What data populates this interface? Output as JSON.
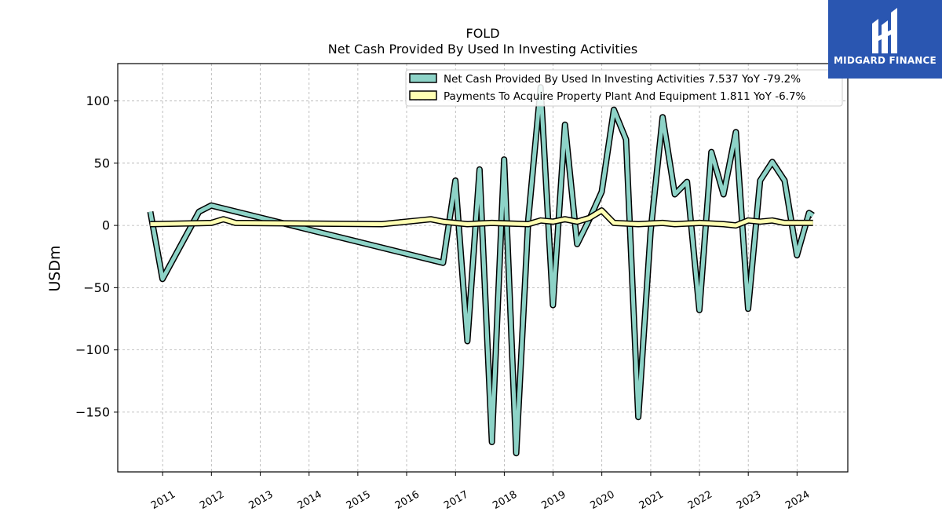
{
  "logo": {
    "text": "MIDGARD FINANCE",
    "icon": "midgard-logo-icon",
    "bg_color": "#2a56b1"
  },
  "chart_data": {
    "type": "line",
    "title": "FOLD",
    "subtitle": "Net Cash Provided By Used In Investing Activities",
    "xlabel": "",
    "ylabel": "USDm",
    "xlim": [
      "2010-01-30",
      "2025-01-15"
    ],
    "ylim": [
      -198,
      130
    ],
    "yticks": [
      100,
      50,
      0,
      -50,
      -100,
      -150
    ],
    "ytick_labels": [
      "100",
      "50",
      "0",
      "−50",
      "−100",
      "−150"
    ],
    "xticks": [
      "2011",
      "2012",
      "2013",
      "2014",
      "2015",
      "2016",
      "2017",
      "2018",
      "2019",
      "2020",
      "2021",
      "2022",
      "2023",
      "2024"
    ],
    "grid": true,
    "legend_position": "top-right",
    "series": [
      {
        "name": "Net Cash Provided By Used In Investing Activities  7.537 YoY -79.2%",
        "color": "#8dd3c7",
        "points": [
          [
            "2010-10-01",
            11
          ],
          [
            "2010-12-31",
            -43
          ],
          [
            "2011-09-30",
            11
          ],
          [
            "2011-12-31",
            16
          ],
          [
            "2016-09-30",
            -30
          ],
          [
            "2016-12-31",
            36
          ],
          [
            "2017-03-31",
            -93
          ],
          [
            "2017-06-30",
            45
          ],
          [
            "2017-09-30",
            -174
          ],
          [
            "2017-12-31",
            53
          ],
          [
            "2018-03-31",
            -183
          ],
          [
            "2018-06-30",
            5
          ],
          [
            "2018-09-30",
            111
          ],
          [
            "2018-12-31",
            -64
          ],
          [
            "2019-03-31",
            81
          ],
          [
            "2019-06-30",
            -15
          ],
          [
            "2019-09-30",
            5
          ],
          [
            "2019-12-31",
            27
          ],
          [
            "2020-03-31",
            93
          ],
          [
            "2020-06-30",
            69
          ],
          [
            "2020-09-30",
            -154
          ],
          [
            "2020-12-31",
            -5
          ],
          [
            "2021-03-31",
            87
          ],
          [
            "2021-06-30",
            25
          ],
          [
            "2021-09-30",
            35
          ],
          [
            "2021-12-31",
            -68
          ],
          [
            "2022-03-31",
            59
          ],
          [
            "2022-06-30",
            25
          ],
          [
            "2022-09-30",
            75
          ],
          [
            "2022-12-31",
            -67
          ],
          [
            "2023-03-31",
            36
          ],
          [
            "2023-06-30",
            51
          ],
          [
            "2023-09-30",
            36
          ],
          [
            "2023-12-31",
            -24
          ],
          [
            "2024-03-31",
            10
          ],
          [
            "2024-04-30",
            8
          ]
        ]
      },
      {
        "name": "Payments To Acquire Property Plant And Equipment  1.811 YoY -6.7%",
        "color": "#ffffb3",
        "points": [
          [
            "2010-10-01",
            1
          ],
          [
            "2011-12-31",
            2
          ],
          [
            "2012-03-31",
            5
          ],
          [
            "2012-06-30",
            2
          ],
          [
            "2015-06-30",
            1
          ],
          [
            "2015-09-30",
            2
          ],
          [
            "2016-03-31",
            4
          ],
          [
            "2016-06-30",
            5
          ],
          [
            "2016-09-30",
            3
          ],
          [
            "2017-03-31",
            1
          ],
          [
            "2017-09-30",
            2
          ],
          [
            "2018-06-30",
            1
          ],
          [
            "2018-09-30",
            4
          ],
          [
            "2018-12-31",
            3
          ],
          [
            "2019-03-31",
            5
          ],
          [
            "2019-06-30",
            3
          ],
          [
            "2019-09-30",
            6
          ],
          [
            "2019-12-31",
            12
          ],
          [
            "2020-03-31",
            2
          ],
          [
            "2020-09-30",
            1
          ],
          [
            "2021-03-31",
            2
          ],
          [
            "2021-06-30",
            1
          ],
          [
            "2021-12-31",
            2
          ],
          [
            "2022-06-30",
            1
          ],
          [
            "2022-09-30",
            0
          ],
          [
            "2022-12-31",
            4
          ],
          [
            "2023-03-31",
            3
          ],
          [
            "2023-06-30",
            4
          ],
          [
            "2023-09-30",
            2
          ],
          [
            "2024-04-30",
            2
          ]
        ]
      }
    ]
  }
}
